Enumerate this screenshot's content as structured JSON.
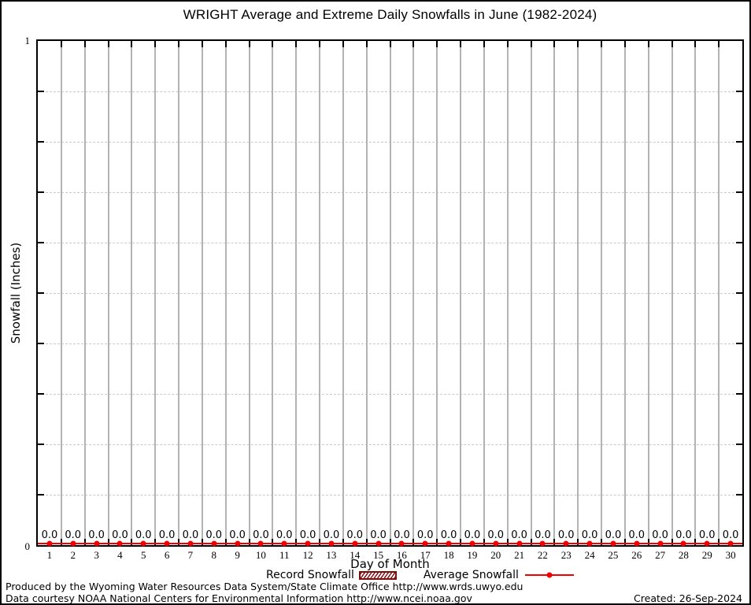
{
  "title": "WRIGHT Average and Extreme Daily Snowfalls in June (1982-2024)",
  "y_axis": {
    "label": "Snowfall (Inches)",
    "top_tick_label": "1",
    "bottom_tick_label": "0"
  },
  "x_axis": {
    "label": "Day of Month"
  },
  "legend": {
    "record": {
      "label": "Record Snowfall"
    },
    "average": {
      "label": "Average Snowfall"
    }
  },
  "footer": {
    "produced_by": "Produced by the Wyoming Water Resources Data System/State Climate Office http://www.wrds.uwyo.edu",
    "data_courtesy": "Data courtesy NOAA National Centers for Environmental Information http://www.ncei.noaa.gov",
    "created": "Created: 26-Sep-2024"
  },
  "colors": {
    "record_hatch": "#8b1515",
    "average_red": "#f20000",
    "grid_vertical_gray": "#b3b3b3",
    "grid_horizontal_dotted": "#c9c9c9",
    "axis_black": "#000000"
  },
  "chart_data": {
    "type": "line",
    "title": "WRIGHT Average and Extreme Daily Snowfalls in June (1982-2024)",
    "xlabel": "Day of Month",
    "ylabel": "Snowfall (Inches)",
    "x": [
      1,
      2,
      3,
      4,
      5,
      6,
      7,
      8,
      9,
      10,
      11,
      12,
      13,
      14,
      15,
      16,
      17,
      18,
      19,
      20,
      21,
      22,
      23,
      24,
      25,
      26,
      27,
      28,
      29,
      30
    ],
    "xlim": [
      0.5,
      30.5
    ],
    "ylim": [
      0,
      1
    ],
    "y_tick_interval": 0.1,
    "y_tick_labels_shown": [
      "0",
      "1"
    ],
    "grid": {
      "vertical_solid_day_separators": true,
      "horizontal_dotted": true,
      "ticks_at_day_boundaries": true
    },
    "legend_position": "below-x-axis",
    "series": [
      {
        "name": "Record Snowfall",
        "type": "bar",
        "color": "#8b1515",
        "values": [
          0,
          0,
          0,
          0,
          0,
          0,
          0,
          0,
          0,
          0,
          0,
          0,
          0,
          0,
          0,
          0,
          0,
          0,
          0,
          0,
          0,
          0,
          0,
          0,
          0,
          0,
          0,
          0,
          0,
          0
        ]
      },
      {
        "name": "Average Snowfall",
        "type": "line+marker",
        "color": "#f20000",
        "values": [
          0,
          0,
          0,
          0,
          0,
          0,
          0,
          0,
          0,
          0,
          0,
          0,
          0,
          0,
          0,
          0,
          0,
          0,
          0,
          0,
          0,
          0,
          0,
          0,
          0,
          0,
          0,
          0,
          0,
          0
        ]
      }
    ],
    "point_labels": [
      "0.0",
      "0.0",
      "0.0",
      "0.0",
      "0.0",
      "0.0",
      "0.0",
      "0.0",
      "0.0",
      "0.0",
      "0.0",
      "0.0",
      "0.0",
      "0.0",
      "0.0",
      "0.0",
      "0.0",
      "0.0",
      "0.0",
      "0.0",
      "0.0",
      "0.0",
      "0.0",
      "0.0",
      "0.0",
      "0.0",
      "0.0",
      "0.0",
      "0.0",
      "0.0"
    ]
  }
}
